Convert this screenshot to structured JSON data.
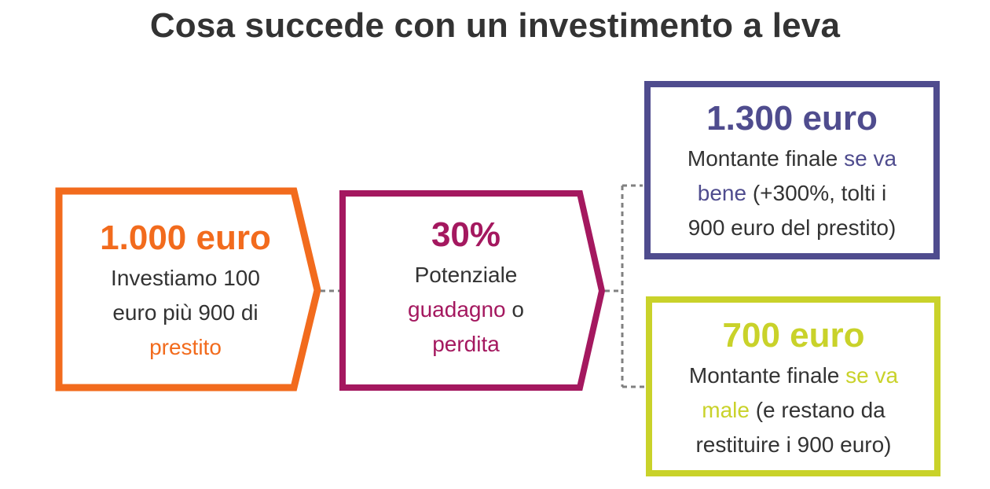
{
  "title": "Cosa succede con un investimento a leva",
  "colors": {
    "orange": "#f26b1d",
    "magenta": "#a4185f",
    "purple": "#4f4c8e",
    "lime": "#c9d22a",
    "connector": "#808080",
    "text": "#333333"
  },
  "steps": {
    "investment": {
      "amount": "1.000 euro",
      "line1": "Investiamo 100",
      "line2": "euro più 900 di",
      "highlight": "prestito"
    },
    "change": {
      "amount": "30%",
      "line1": "Potenziale",
      "highlight1": "guadagno",
      "between": " o",
      "highlight2": "perdita"
    }
  },
  "outcomes": {
    "good": {
      "amount": "1.300 euro",
      "text_pre": "Montante finale ",
      "highlight_a": "se va",
      "highlight_b": "bene",
      "text_post_a": " (+300%, tolti i",
      "text_post_b": "900 euro del prestito)"
    },
    "bad": {
      "amount": "700 euro",
      "text_pre": "Montante finale ",
      "highlight_a": "se va",
      "highlight_b": "male",
      "text_post_a": " (e restano da",
      "text_post_b": "restituire i 900 euro)"
    }
  }
}
